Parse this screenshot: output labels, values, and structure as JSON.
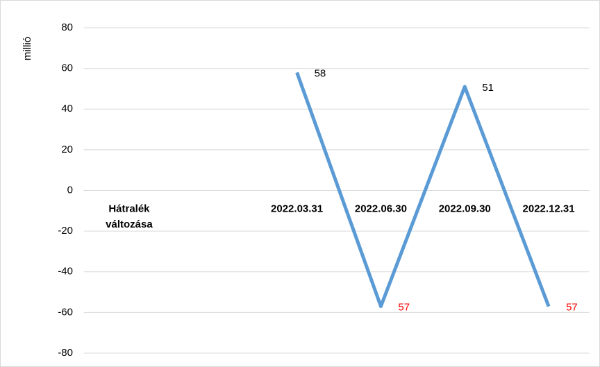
{
  "chart_data": {
    "type": "line",
    "y_axis_label": "millió",
    "categories": [
      "Hátralék változása",
      null,
      "2022.03.31",
      "2022.06.30",
      "2022.09.30",
      "2022.12.31"
    ],
    "series": [
      {
        "color": "#5b9bd5",
        "values": [
          null,
          null,
          58,
          -57,
          51,
          -57
        ],
        "value_labels": [
          null,
          null,
          "58",
          "57",
          "51",
          "57"
        ]
      }
    ],
    "negative_label_color": "#ff0000",
    "ylim": [
      -80,
      80
    ],
    "yticks": [
      -80,
      -60,
      -40,
      -20,
      0,
      20,
      40,
      60,
      80
    ],
    "grid": true
  }
}
